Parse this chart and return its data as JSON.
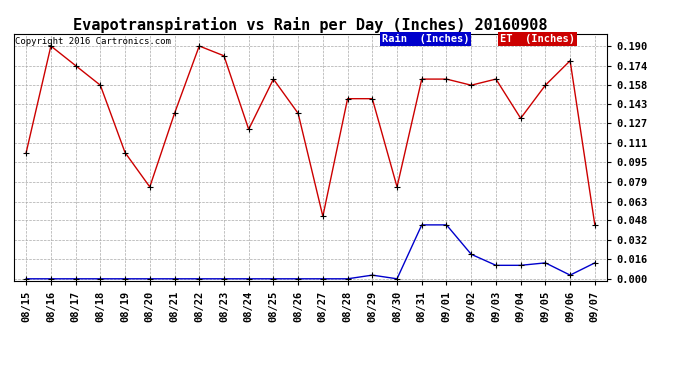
{
  "title": "Evapotranspiration vs Rain per Day (Inches) 20160908",
  "copyright": "Copyright 2016 Cartronics.com",
  "x_labels": [
    "08/15",
    "08/16",
    "08/17",
    "08/18",
    "08/19",
    "08/20",
    "08/21",
    "08/22",
    "08/23",
    "08/24",
    "08/25",
    "08/26",
    "08/27",
    "08/28",
    "08/29",
    "08/30",
    "08/31",
    "09/01",
    "09/02",
    "09/03",
    "09/04",
    "09/05",
    "09/06",
    "09/07"
  ],
  "et_values": [
    0.103,
    0.19,
    0.174,
    0.158,
    0.103,
    0.075,
    0.135,
    0.19,
    0.182,
    0.122,
    0.163,
    0.135,
    0.051,
    0.147,
    0.147,
    0.075,
    0.163,
    0.163,
    0.158,
    0.163,
    0.131,
    0.158,
    0.178,
    0.044
  ],
  "rain_values": [
    0.0,
    0.0,
    0.0,
    0.0,
    0.0,
    0.0,
    0.0,
    0.0,
    0.0,
    0.0,
    0.0,
    0.0,
    0.0,
    0.0,
    0.003,
    0.0,
    0.044,
    0.044,
    0.02,
    0.011,
    0.011,
    0.013,
    0.003,
    0.013
  ],
  "et_color": "#cc0000",
  "rain_color": "#0000cc",
  "grid_color": "#aaaaaa",
  "bg_color": "#ffffff",
  "y_ticks": [
    0.0,
    0.016,
    0.032,
    0.048,
    0.063,
    0.079,
    0.095,
    0.111,
    0.127,
    0.143,
    0.158,
    0.174,
    0.19
  ],
  "ylim": [
    -0.002,
    0.2
  ],
  "title_fontsize": 11,
  "copyright_fontsize": 6.5,
  "tick_fontsize": 7.5,
  "legend_fontsize": 7.5
}
